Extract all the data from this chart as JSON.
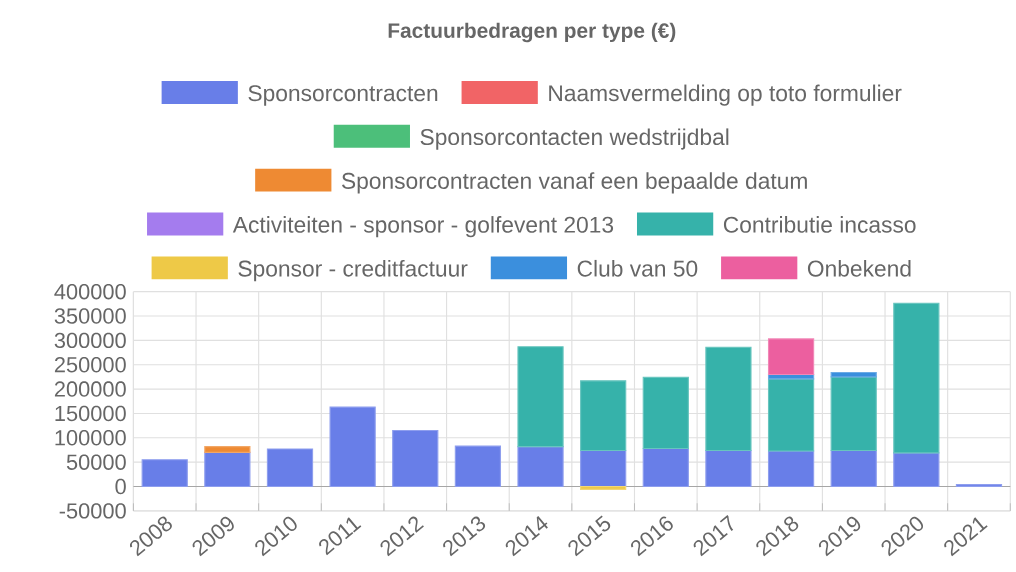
{
  "chart_data": {
    "type": "bar",
    "title": "Factuurbedragen per type (€)",
    "stacked": true,
    "legend": "top",
    "grid": true,
    "categories": [
      "2008",
      "2009",
      "2010",
      "2011",
      "2012",
      "2013",
      "2014",
      "2015",
      "2016",
      "2017",
      "2018",
      "2019",
      "2020",
      "2021"
    ],
    "ylim": [
      -50000,
      400000
    ],
    "yticks": [
      -50000,
      0,
      50000,
      100000,
      150000,
      200000,
      250000,
      300000,
      350000,
      400000
    ],
    "series": [
      {
        "name": "Sponsorcontracten",
        "color": "#687ee8",
        "values": [
          55000,
          70000,
          77000,
          163000,
          115000,
          83000,
          82000,
          74000,
          78000,
          74000,
          73000,
          74000,
          69000,
          4000
        ]
      },
      {
        "name": "Naamsvermelding op toto formulier",
        "color": "#f16466",
        "values": [
          null,
          null,
          null,
          null,
          null,
          null,
          null,
          null,
          null,
          null,
          null,
          null,
          null,
          null
        ]
      },
      {
        "name": "Sponsorcontacten wedstrijdbal",
        "color": "#4cbf7a",
        "values": [
          null,
          null,
          null,
          null,
          null,
          null,
          null,
          null,
          null,
          null,
          null,
          null,
          null,
          null
        ]
      },
      {
        "name": "Sponsorcontracten vanaf een bepaalde datum",
        "color": "#ee8a33",
        "values": [
          null,
          12000,
          null,
          null,
          null,
          null,
          null,
          null,
          null,
          null,
          null,
          null,
          null,
          null
        ]
      },
      {
        "name": "Activiteiten - sponsor - golfevent 2013",
        "color": "#a47cee",
        "values": [
          null,
          null,
          null,
          null,
          null,
          null,
          null,
          null,
          null,
          null,
          null,
          null,
          null,
          null
        ]
      },
      {
        "name": "Contributie incasso",
        "color": "#36b2aa",
        "values": [
          null,
          null,
          null,
          null,
          null,
          null,
          205000,
          143000,
          146000,
          212000,
          148000,
          151000,
          307000,
          null
        ]
      },
      {
        "name": "Sponsor - creditfactuur",
        "color": "#eec947",
        "values": [
          null,
          null,
          null,
          null,
          null,
          null,
          null,
          -6000,
          null,
          null,
          null,
          null,
          null,
          null
        ]
      },
      {
        "name": "Club van 50",
        "color": "#3b8fdd",
        "values": [
          null,
          null,
          null,
          null,
          null,
          null,
          null,
          null,
          null,
          null,
          9000,
          9000,
          null,
          null
        ]
      },
      {
        "name": "Onbekend",
        "color": "#ec5f9f",
        "values": [
          null,
          null,
          null,
          null,
          null,
          null,
          null,
          null,
          null,
          null,
          73000,
          null,
          null,
          null
        ]
      }
    ]
  }
}
